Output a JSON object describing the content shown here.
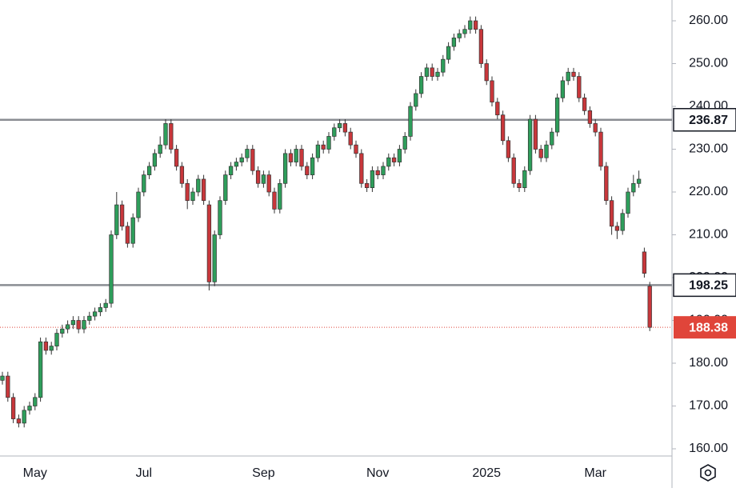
{
  "chart_data": {
    "type": "candlestick",
    "categories": [
      null,
      null,
      null,
      null,
      null,
      null,
      "May",
      null,
      null,
      null,
      null,
      null,
      null,
      null,
      null,
      null,
      null,
      null,
      null,
      null,
      null,
      null,
      null,
      null,
      null,
      null,
      "Jul",
      null,
      null,
      null,
      null,
      null,
      null,
      null,
      null,
      null,
      null,
      null,
      null,
      null,
      null,
      null,
      null,
      null,
      null,
      null,
      null,
      null,
      "Sep",
      null,
      null,
      null,
      null,
      null,
      null,
      null,
      null,
      null,
      null,
      null,
      null,
      null,
      null,
      null,
      null,
      null,
      null,
      null,
      null,
      "Nov",
      null,
      null,
      null,
      null,
      null,
      null,
      null,
      null,
      null,
      null,
      null,
      null,
      null,
      null,
      null,
      null,
      null,
      null,
      null,
      "2025",
      null,
      null,
      null,
      null,
      null,
      null,
      null,
      null,
      null,
      null,
      null,
      null,
      null,
      null,
      null,
      null,
      null,
      null,
      null,
      "Mar",
      null,
      null,
      null,
      null,
      null,
      null,
      null,
      null,
      null,
      null
    ],
    "open": [
      176,
      177,
      172,
      167,
      166,
      169,
      170,
      172,
      185,
      183,
      184,
      187,
      188,
      189,
      190,
      188,
      190,
      191,
      192,
      193,
      194,
      210,
      217,
      212,
      208,
      214,
      220,
      224,
      226,
      229,
      231,
      236,
      230,
      226,
      222,
      218,
      220,
      223,
      217,
      199,
      210,
      218,
      224,
      226,
      227,
      228,
      230,
      225,
      222,
      224,
      220,
      216,
      222,
      229,
      227,
      230,
      226,
      224,
      228,
      231,
      230,
      233,
      235,
      236,
      234,
      231,
      229,
      222,
      221,
      225,
      224,
      226,
      228,
      227,
      230,
      233,
      240,
      243,
      247,
      249,
      247,
      248,
      251,
      254,
      256,
      257,
      258,
      260,
      258,
      250,
      246,
      241,
      238,
      232,
      228,
      222,
      221,
      225,
      237,
      230,
      228,
      231,
      234,
      242,
      246,
      248,
      247,
      242,
      239,
      236,
      234,
      226,
      218,
      212,
      211,
      215,
      220,
      222,
      206,
      198
    ],
    "high": [
      178,
      178,
      173,
      168,
      170,
      171,
      173,
      186,
      186,
      185,
      188,
      189,
      190,
      191,
      191,
      191,
      192,
      193,
      194,
      195,
      211,
      220,
      218,
      213,
      215,
      221,
      225,
      227,
      230,
      233,
      237,
      237,
      231,
      227,
      223,
      221,
      224,
      224,
      218,
      211,
      219,
      225,
      227,
      228,
      229,
      231,
      231,
      226,
      225,
      225,
      221,
      223,
      230,
      230,
      231,
      231,
      227,
      229,
      232,
      232,
      234,
      236,
      237,
      237,
      235,
      232,
      230,
      223,
      226,
      226,
      227,
      229,
      229,
      231,
      234,
      241,
      244,
      248,
      250,
      250,
      249,
      252,
      255,
      257,
      258,
      259,
      261,
      261,
      259,
      251,
      247,
      242,
      239,
      233,
      229,
      223,
      226,
      238,
      238,
      231,
      232,
      235,
      243,
      247,
      249,
      249,
      248,
      243,
      240,
      237,
      235,
      227,
      219,
      213,
      216,
      221,
      224,
      225,
      207,
      199
    ],
    "low": [
      175,
      171,
      166,
      165,
      165,
      168,
      169,
      171,
      182,
      182,
      183,
      186,
      187,
      188,
      187,
      187,
      189,
      190,
      191,
      192,
      193,
      209,
      211,
      207,
      207,
      213,
      219,
      223,
      225,
      228,
      230,
      229,
      225,
      221,
      216,
      217,
      219,
      217,
      197,
      198,
      209,
      217,
      223,
      225,
      226,
      227,
      224,
      221,
      221,
      219,
      215,
      215,
      221,
      226,
      226,
      225,
      223,
      223,
      227,
      229,
      229,
      232,
      234,
      233,
      230,
      228,
      221,
      220,
      220,
      223,
      223,
      225,
      226,
      226,
      229,
      232,
      239,
      242,
      246,
      246,
      246,
      247,
      250,
      253,
      255,
      256,
      257,
      257,
      249,
      245,
      240,
      237,
      231,
      227,
      221,
      220,
      220,
      224,
      229,
      227,
      227,
      230,
      233,
      241,
      245,
      246,
      241,
      238,
      235,
      233,
      225,
      217,
      210,
      209,
      210,
      214,
      219,
      221,
      200,
      187.5
    ],
    "close": [
      177,
      172,
      167,
      166,
      169,
      170,
      172,
      185,
      183,
      184,
      187,
      188,
      189,
      190,
      188,
      190,
      191,
      192,
      193,
      194,
      210,
      217,
      212,
      208,
      214,
      220,
      224,
      226,
      229,
      231,
      236,
      230,
      226,
      222,
      218,
      220,
      223,
      218,
      199,
      210,
      218,
      224,
      226,
      227,
      228,
      230,
      225,
      222,
      224,
      220,
      216,
      222,
      229,
      227,
      230,
      226,
      224,
      228,
      231,
      230,
      233,
      235,
      236,
      234,
      231,
      229,
      222,
      221,
      225,
      224,
      226,
      228,
      227,
      230,
      233,
      240,
      243,
      247,
      249,
      247,
      248,
      251,
      254,
      256,
      257,
      258,
      260,
      258,
      250,
      246,
      241,
      238,
      232,
      228,
      222,
      221,
      225,
      237,
      230,
      228,
      231,
      234,
      242,
      246,
      248,
      247,
      242,
      239,
      236,
      234,
      226,
      218,
      212,
      211,
      215,
      220,
      222,
      223,
      201,
      188.38
    ],
    "up_color": "#2e9e5b",
    "down_color": "#c8373b",
    "ylim": [
      158.32,
      264.86
    ],
    "yticks": [
      {
        "value": 160,
        "label": "160.00"
      },
      {
        "value": 170,
        "label": "170.00"
      },
      {
        "value": 180,
        "label": "180.00"
      },
      {
        "value": 190,
        "label": "190.00"
      },
      {
        "value": 200,
        "label": "200.00"
      },
      {
        "value": 210,
        "label": "210.00"
      },
      {
        "value": 220,
        "label": "220.00"
      },
      {
        "value": 230,
        "label": "230.00"
      },
      {
        "value": 240,
        "label": "240.00"
      },
      {
        "value": 250,
        "label": "250.00"
      },
      {
        "value": 260,
        "label": "260.00"
      }
    ],
    "levels": [
      236.87,
      198.25
    ],
    "level_color": "#8a8d93",
    "last_price": 188.38,
    "last_price_color": "#e0453a"
  }
}
